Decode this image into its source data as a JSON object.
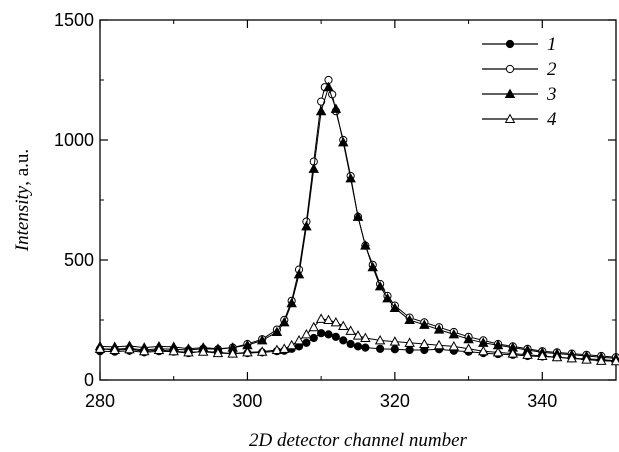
{
  "chart_data": {
    "type": "line",
    "xlabel": "2D detector channel number",
    "ylabel_italic": "Intensity",
    "ylabel_unit": ", a.u.",
    "xlim": [
      280,
      350
    ],
    "ylim": [
      0,
      1500
    ],
    "xticks": [
      280,
      300,
      320,
      340
    ],
    "yticks": [
      0,
      500,
      1000,
      1500
    ],
    "legend_position": "top-right",
    "series": [
      {
        "name": "1",
        "marker": "filled-circle",
        "x": [
          280,
          282,
          284,
          286,
          288,
          290,
          292,
          294,
          296,
          298,
          300,
          302,
          304,
          305,
          306,
          307,
          308,
          309,
          310,
          311,
          312,
          313,
          314,
          315,
          316,
          318,
          320,
          322,
          324,
          326,
          328,
          330,
          332,
          334,
          336,
          338,
          340,
          342,
          344,
          346,
          348,
          350
        ],
        "y": [
          120,
          118,
          122,
          115,
          120,
          118,
          112,
          120,
          115,
          110,
          112,
          115,
          120,
          122,
          130,
          140,
          155,
          175,
          195,
          190,
          180,
          165,
          150,
          140,
          135,
          130,
          128,
          125,
          125,
          128,
          122,
          118,
          112,
          108,
          105,
          100,
          98,
          95,
          90,
          88,
          85,
          80
        ]
      },
      {
        "name": "2",
        "marker": "open-circle",
        "x": [
          280,
          282,
          284,
          286,
          288,
          290,
          292,
          294,
          296,
          298,
          300,
          302,
          304,
          305,
          306,
          307,
          308,
          309,
          310,
          310.5,
          311,
          311.5,
          312,
          313,
          314,
          315,
          316,
          317,
          318,
          319,
          320,
          322,
          324,
          326,
          328,
          330,
          332,
          334,
          336,
          338,
          340,
          342,
          344,
          346,
          348,
          350
        ],
        "y": [
          130,
          128,
          132,
          125,
          130,
          128,
          125,
          130,
          128,
          135,
          150,
          170,
          210,
          250,
          330,
          460,
          660,
          910,
          1160,
          1220,
          1250,
          1190,
          1120,
          1000,
          850,
          680,
          560,
          480,
          400,
          350,
          310,
          260,
          240,
          220,
          200,
          180,
          165,
          150,
          140,
          130,
          120,
          115,
          110,
          105,
          100,
          95
        ]
      },
      {
        "name": "3",
        "marker": "filled-triangle",
        "x": [
          280,
          282,
          284,
          286,
          288,
          290,
          292,
          294,
          296,
          298,
          300,
          302,
          304,
          305,
          306,
          307,
          308,
          309,
          310,
          311,
          312,
          313,
          314,
          315,
          316,
          317,
          318,
          319,
          320,
          322,
          324,
          326,
          328,
          330,
          332,
          334,
          336,
          338,
          340,
          342,
          344,
          346,
          348,
          350
        ],
        "y": [
          140,
          138,
          142,
          135,
          140,
          138,
          130,
          135,
          130,
          135,
          145,
          165,
          200,
          240,
          320,
          440,
          640,
          880,
          1120,
          1220,
          1130,
          990,
          840,
          680,
          560,
          470,
          390,
          340,
          300,
          250,
          230,
          210,
          190,
          170,
          155,
          145,
          135,
          125,
          115,
          110,
          105,
          100,
          95,
          90
        ]
      },
      {
        "name": "4",
        "marker": "open-triangle",
        "x": [
          280,
          282,
          284,
          286,
          288,
          290,
          292,
          294,
          296,
          298,
          300,
          302,
          304,
          305,
          306,
          307,
          308,
          309,
          310,
          311,
          312,
          313,
          314,
          315,
          316,
          318,
          320,
          322,
          324,
          326,
          328,
          330,
          332,
          334,
          336,
          338,
          340,
          342,
          344,
          346,
          348,
          350
        ],
        "y": [
          130,
          125,
          128,
          120,
          125,
          120,
          115,
          118,
          112,
          110,
          115,
          118,
          125,
          130,
          145,
          165,
          190,
          220,
          255,
          250,
          240,
          225,
          205,
          185,
          175,
          165,
          160,
          155,
          150,
          145,
          140,
          130,
          120,
          115,
          110,
          105,
          100,
          95,
          90,
          85,
          80,
          78
        ]
      }
    ]
  }
}
